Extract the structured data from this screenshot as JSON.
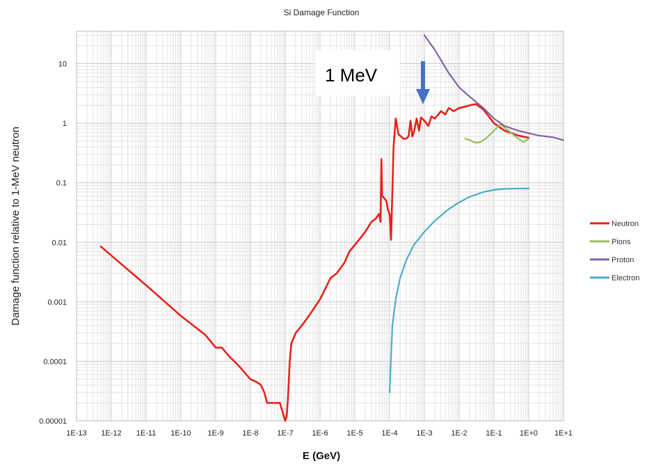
{
  "chart_data": {
    "type": "line",
    "title": "Si Damage Function",
    "xlabel": "E (GeV)",
    "ylabel": "Damage function relative to 1-MeV neutron",
    "x_scale": "log",
    "y_scale": "log",
    "xlim": [
      1e-13,
      10
    ],
    "ylim": [
      1e-05,
      35
    ],
    "grid": true,
    "legend_position": "right",
    "x_tick_labels": [
      "1E-13",
      "1E-12",
      "1E-11",
      "1E-10",
      "1E-9",
      "1E-8",
      "1E-7",
      "1E-6",
      "1E-5",
      "1E-4",
      "1E-3",
      "1E-2",
      "1E-1",
      "1E+0",
      "1E+1"
    ],
    "y_tick_labels": [
      "0.00001",
      "0.0001",
      "0.001",
      "0.01",
      "0.1",
      "1",
      "10"
    ],
    "annotation": {
      "text": "1 MeV",
      "points_to_x": 0.001,
      "arrow_color": "#4472c4"
    },
    "series": [
      {
        "name": "Neutron",
        "color": "#e8201a",
        "points": [
          [
            5e-13,
            0.0085
          ],
          [
            1e-12,
            0.006
          ],
          [
            1e-11,
            0.0019
          ],
          [
            1e-10,
            0.00058
          ],
          [
            5e-10,
            0.00028
          ],
          [
            7e-10,
            0.00022
          ],
          [
            1e-09,
            0.00017
          ],
          [
            1.5e-09,
            0.00017
          ],
          [
            2.5e-09,
            0.00012
          ],
          [
            5e-09,
            8e-05
          ],
          [
            1e-08,
            5e-05
          ],
          [
            1.5e-08,
            4.5e-05
          ],
          [
            2e-08,
            4e-05
          ],
          [
            2.5e-08,
            3e-05
          ],
          [
            3e-08,
            2e-05
          ],
          [
            5e-08,
            2e-05
          ],
          [
            7e-08,
            2e-05
          ],
          [
            1e-07,
            1e-05
          ],
          [
            1.1e-07,
            1.2e-05
          ],
          [
            1.2e-07,
            2.5e-05
          ],
          [
            1.35e-07,
            0.0001
          ],
          [
            1.5e-07,
            0.0002
          ],
          [
            2e-07,
            0.0003
          ],
          [
            3e-07,
            0.0004
          ],
          [
            5e-07,
            0.0006
          ],
          [
            1e-06,
            0.0011
          ],
          [
            2e-06,
            0.0025
          ],
          [
            3e-06,
            0.003
          ],
          [
            5e-06,
            0.0045
          ],
          [
            7e-06,
            0.007
          ],
          [
            1e-05,
            0.009
          ],
          [
            2e-05,
            0.015
          ],
          [
            3e-05,
            0.022
          ],
          [
            4e-05,
            0.025
          ],
          [
            5e-05,
            0.03
          ],
          [
            5.5e-05,
            0.022
          ],
          [
            5.8e-05,
            0.25
          ],
          [
            6.1e-05,
            0.06
          ],
          [
            7e-05,
            0.055
          ],
          [
            8e-05,
            0.05
          ],
          [
            9e-05,
            0.035
          ],
          [
            0.0001,
            0.03
          ],
          [
            0.00011,
            0.011
          ],
          [
            0.00013,
            0.4
          ],
          [
            0.00015,
            1.2
          ],
          [
            0.00018,
            0.65
          ],
          [
            0.00025,
            0.55
          ],
          [
            0.0003,
            0.55
          ],
          [
            0.00035,
            0.6
          ],
          [
            0.0004,
            1.1
          ],
          [
            0.00045,
            0.6
          ],
          [
            0.0005,
            0.7
          ],
          [
            0.0006,
            1.2
          ],
          [
            0.0007,
            0.75
          ],
          [
            0.0008,
            1.25
          ],
          [
            0.001,
            1.1
          ],
          [
            0.0013,
            0.9
          ],
          [
            0.0016,
            1.3
          ],
          [
            0.002,
            1.2
          ],
          [
            0.003,
            1.6
          ],
          [
            0.004,
            1.4
          ],
          [
            0.005,
            1.8
          ],
          [
            0.007,
            1.6
          ],
          [
            0.01,
            1.8
          ],
          [
            0.015,
            1.9
          ],
          [
            0.02,
            2.0
          ],
          [
            0.03,
            2.1
          ],
          [
            0.05,
            1.7
          ],
          [
            0.1,
            1.0
          ],
          [
            0.2,
            0.75
          ],
          [
            0.5,
            0.62
          ],
          [
            1,
            0.57
          ]
        ]
      },
      {
        "name": "Pions",
        "color": "#9bbb59",
        "points": [
          [
            0.015,
            0.55
          ],
          [
            0.02,
            0.52
          ],
          [
            0.03,
            0.47
          ],
          [
            0.04,
            0.48
          ],
          [
            0.06,
            0.56
          ],
          [
            0.1,
            0.75
          ],
          [
            0.15,
            0.95
          ],
          [
            0.2,
            0.85
          ],
          [
            0.3,
            0.7
          ],
          [
            0.5,
            0.55
          ],
          [
            0.7,
            0.48
          ],
          [
            1,
            0.55
          ]
        ]
      },
      {
        "name": "Proton",
        "color": "#8064a2",
        "points": [
          [
            0.001,
            30
          ],
          [
            0.002,
            17
          ],
          [
            0.005,
            7
          ],
          [
            0.01,
            4
          ],
          [
            0.02,
            2.8
          ],
          [
            0.05,
            1.8
          ],
          [
            0.1,
            1.2
          ],
          [
            0.2,
            0.9
          ],
          [
            0.5,
            0.75
          ],
          [
            1,
            0.68
          ],
          [
            2,
            0.62
          ],
          [
            5,
            0.58
          ],
          [
            10,
            0.52
          ]
        ]
      },
      {
        "name": "Electron",
        "color": "#4bacc6",
        "points": [
          [
            0.0001,
            3e-05
          ],
          [
            0.00012,
            0.0004
          ],
          [
            0.00015,
            0.0011
          ],
          [
            0.0002,
            0.0025
          ],
          [
            0.0003,
            0.005
          ],
          [
            0.0005,
            0.009
          ],
          [
            0.001,
            0.015
          ],
          [
            0.002,
            0.023
          ],
          [
            0.005,
            0.036
          ],
          [
            0.01,
            0.047
          ],
          [
            0.02,
            0.058
          ],
          [
            0.05,
            0.07
          ],
          [
            0.1,
            0.076
          ],
          [
            0.2,
            0.079
          ],
          [
            0.5,
            0.08
          ],
          [
            1,
            0.08
          ]
        ]
      }
    ]
  }
}
